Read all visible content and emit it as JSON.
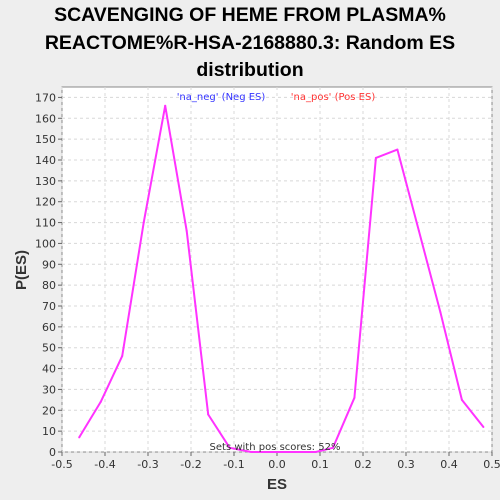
{
  "chart_data": {
    "type": "line",
    "title_lines": [
      "SCAVENGING OF HEME FROM PLASMA%",
      "REACTOME%R-HSA-2168880.3: Random ES",
      "distribution"
    ],
    "xlabel": "ES",
    "ylabel": "P(ES)",
    "xlim": [
      -0.5,
      0.5
    ],
    "ylim": [
      0,
      175
    ],
    "x_ticks": [
      "-0.5",
      "-0.4",
      "-0.3",
      "-0.2",
      "-0.1",
      "0.0",
      "0.1",
      "0.2",
      "0.3",
      "0.4",
      "0.5"
    ],
    "y_ticks": [
      "0",
      "10",
      "20",
      "30",
      "40",
      "50",
      "60",
      "70",
      "80",
      "90",
      "100",
      "110",
      "120",
      "130",
      "140",
      "150",
      "160",
      "170"
    ],
    "grid": true,
    "legend": {
      "placement": "top",
      "entries": [
        {
          "label": "'na_neg' (Neg ES)",
          "color": "#3333ff"
        },
        {
          "label": "'na_pos' (Pos ES)",
          "color": "#ff3333"
        }
      ]
    },
    "annotation": "Sets with pos scores: 52%",
    "series": [
      {
        "color": "#ff33ff",
        "x": [
          -0.46,
          -0.41,
          -0.36,
          -0.31,
          -0.26,
          -0.21,
          -0.16,
          -0.11,
          -0.06,
          -0.01,
          0.04,
          0.09,
          0.13,
          0.18,
          0.23,
          0.28,
          0.33,
          0.38,
          0.43,
          0.48
        ],
        "y": [
          7,
          24,
          46,
          110,
          166,
          106,
          18,
          2,
          0,
          0,
          0,
          0,
          2,
          26,
          141,
          145,
          106,
          67,
          25,
          12
        ]
      }
    ]
  }
}
